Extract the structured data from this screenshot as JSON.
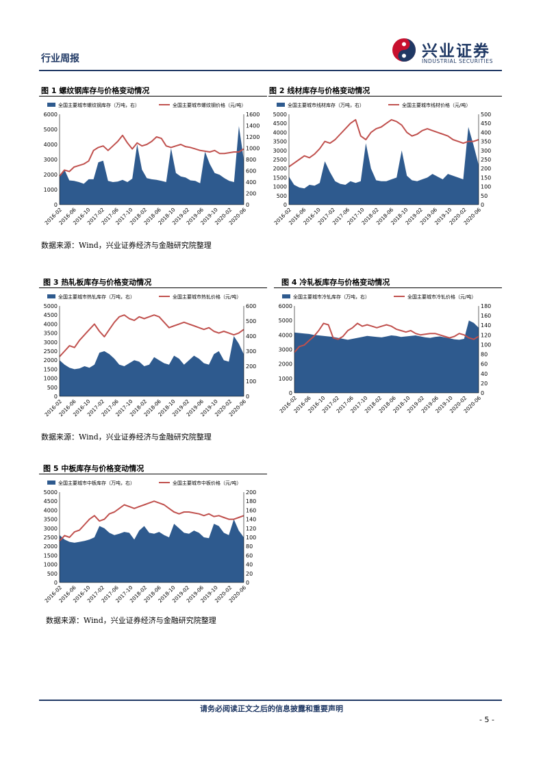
{
  "header": {
    "section_title": "行业周报",
    "logo_cn": "兴业证券",
    "logo_en": "INDUSTRIAL SECURITIES"
  },
  "source_note": "数据来源：Wind，兴业证券经济与金融研究院整理",
  "footer": {
    "disclaimer": "请务必阅读正文之后的信息披露和重要声明",
    "page_number": "- 5 -"
  },
  "colors": {
    "inventory": "#2e5a8e",
    "price": "#c0504d",
    "brand": "#1f3864"
  },
  "chart_data": [
    {
      "id": "fig1",
      "type": "area",
      "figure_title": "图 1 螺纹钢库存与价格变动情况",
      "legend": [
        "全国主要城市螺纹钢库存（万吨，右）",
        "全国主要城市螺纹钢价格（元/吨）"
      ],
      "x_ticks": [
        "2016-02",
        "2016-06",
        "2016-10",
        "2017-02",
        "2017-06",
        "2017-10",
        "2018-02",
        "2018-06",
        "2018-10",
        "2019-02",
        "2019-06",
        "2019-10",
        "2020-02",
        "2020-06"
      ],
      "left_ticks": [
        "0",
        "1000",
        "2000",
        "3000",
        "4000",
        "5000",
        "6000"
      ],
      "right_ticks": [
        "0",
        "200",
        "400",
        "600",
        "800",
        "1000",
        "1200",
        "1400",
        "1600"
      ],
      "left_max": 6000,
      "right_max": 1600,
      "series": [
        {
          "name": "全国主要城市螺纹钢库存（万吨，右）",
          "kind": "area",
          "axis": "right",
          "values": [
            500,
            620,
            430,
            420,
            400,
            370,
            450,
            450,
            750,
            780,
            420,
            400,
            410,
            440,
            400,
            460,
            1070,
            620,
            470,
            450,
            440,
            420,
            400,
            1000,
            560,
            500,
            480,
            430,
            420,
            380,
            940,
            720,
            560,
            530,
            470,
            420,
            400,
            1390,
            800
          ]
        },
        {
          "name": "全国主要城市螺纹钢价格（元/吨）",
          "kind": "line",
          "axis": "left",
          "values": [
            1900,
            2300,
            2200,
            2500,
            2600,
            2700,
            2900,
            3600,
            3800,
            3900,
            3600,
            3900,
            4200,
            4600,
            4100,
            3700,
            4100,
            3900,
            4000,
            4200,
            4500,
            4400,
            3900,
            3800,
            3900,
            4000,
            3850,
            3800,
            3700,
            3600,
            3550,
            3500,
            3600,
            3400,
            3400,
            3450,
            3500,
            3500,
            3700
          ]
        }
      ]
    },
    {
      "id": "fig2",
      "type": "area",
      "figure_title": "图 2 线材库存与价格变动情况",
      "legend": [
        "全国主要城市线材库存（万吨，右）",
        "全国主要城市线材价格（元/吨）"
      ],
      "x_ticks": [
        "2016-02",
        "2016-06",
        "2016-10",
        "2017-02",
        "2017-06",
        "2017-10",
        "2018-02",
        "2018-06",
        "2018-10",
        "2019-02",
        "2019-06",
        "2019-10",
        "2020-02",
        "2020-06"
      ],
      "left_ticks": [
        "0",
        "500",
        "1000",
        "1500",
        "2000",
        "2500",
        "3000",
        "3500",
        "4000",
        "4500",
        "5000"
      ],
      "right_ticks": [
        "0",
        "50",
        "100",
        "150",
        "200",
        "250",
        "300",
        "350",
        "400",
        "450",
        "500"
      ],
      "left_max": 5000,
      "right_max": 500,
      "series": [
        {
          "name": "全国主要城市线材库存（万吨，右）",
          "kind": "area",
          "axis": "right",
          "values": [
            155,
            110,
            95,
            90,
            110,
            105,
            120,
            240,
            180,
            130,
            115,
            110,
            130,
            120,
            130,
            340,
            200,
            135,
            130,
            130,
            140,
            150,
            300,
            160,
            135,
            130,
            140,
            150,
            170,
            155,
            140,
            170,
            160,
            150,
            140,
            430,
            330,
            220
          ]
        },
        {
          "name": "全国主要城市线材价格（元/吨）",
          "kind": "line",
          "axis": "left",
          "values": [
            2100,
            2300,
            2500,
            2700,
            2600,
            2800,
            3100,
            3500,
            3400,
            3600,
            3900,
            4200,
            4500,
            4700,
            3800,
            3600,
            4000,
            4200,
            4300,
            4500,
            4700,
            4600,
            4400,
            4000,
            3800,
            3900,
            4100,
            4200,
            4100,
            4000,
            3900,
            3800,
            3600,
            3500,
            3400,
            3500,
            3500,
            3600
          ]
        }
      ]
    },
    {
      "id": "fig3",
      "type": "area",
      "figure_title": "图 3 热轧板库存与价格变动情况",
      "legend": [
        "全国主要城市热轧库存（万吨，右）",
        "全国主要城市热轧价格（元/吨）"
      ],
      "x_ticks": [
        "2016-02",
        "2016-06",
        "2016-10",
        "2017-02",
        "2017-06",
        "2017-10",
        "2018-02",
        "2018-06",
        "2018-10",
        "2019-02",
        "2019-06",
        "2019-10",
        "2020-02",
        "2020-06"
      ],
      "left_ticks": [
        "0",
        "500",
        "1000",
        "1500",
        "2000",
        "2500",
        "3000",
        "3500",
        "4000",
        "4500",
        "5000"
      ],
      "right_ticks": [
        "0",
        "100",
        "200",
        "300",
        "400",
        "500",
        "600"
      ],
      "left_max": 5000,
      "right_max": 600,
      "series": [
        {
          "name": "全国主要城市热轧库存（万吨，右）",
          "kind": "area",
          "axis": "right",
          "values": [
            240,
            210,
            190,
            180,
            185,
            200,
            190,
            210,
            290,
            300,
            280,
            250,
            210,
            200,
            220,
            240,
            230,
            200,
            210,
            260,
            240,
            220,
            210,
            270,
            250,
            210,
            240,
            270,
            250,
            220,
            210,
            280,
            300,
            240,
            230,
            400,
            350,
            280
          ]
        },
        {
          "name": "全国主要城市热轧价格（元/吨）",
          "kind": "line",
          "axis": "left",
          "values": [
            2200,
            2500,
            2800,
            2700,
            3100,
            3400,
            3700,
            4000,
            3600,
            3300,
            3700,
            4100,
            4400,
            4500,
            4300,
            4200,
            4400,
            4300,
            4400,
            4500,
            4400,
            4100,
            3800,
            3900,
            4000,
            4100,
            4000,
            3900,
            3800,
            3700,
            3800,
            3600,
            3500,
            3600,
            3500,
            3400,
            3500,
            3700
          ]
        }
      ]
    },
    {
      "id": "fig4",
      "type": "area",
      "figure_title": "图 4 冷轧板库存与价格变动情况",
      "legend": [
        "全国主要城市冷轧库存（万吨，右）",
        "全国主要城市冷轧价格（元/吨）"
      ],
      "x_ticks": [
        "2016-02",
        "2016-06",
        "2016-10",
        "2017-02",
        "2017-06",
        "2017-10",
        "2018-02",
        "2018-06",
        "2018-10",
        "2019-02",
        "2019-06",
        "2019-10",
        "2020-02",
        "2020-06"
      ],
      "left_ticks": [
        "0",
        "1000",
        "2000",
        "3000",
        "4000",
        "5000",
        "6000"
      ],
      "right_ticks": [
        "0",
        "20",
        "40",
        "60",
        "80",
        "100",
        "120",
        "140",
        "160",
        "180"
      ],
      "left_max": 6000,
      "right_max": 180,
      "series": [
        {
          "name": "全国主要城市冷轧库存（万吨，右）",
          "kind": "area",
          "axis": "right",
          "values": [
            125,
            124,
            123,
            122,
            120,
            119,
            118,
            117,
            116,
            114,
            112,
            110,
            112,
            114,
            116,
            118,
            117,
            116,
            115,
            117,
            119,
            118,
            116,
            117,
            118,
            119,
            117,
            115,
            114,
            116,
            117,
            115,
            113,
            111,
            110,
            112,
            150,
            145,
            135
          ]
        },
        {
          "name": "全国主要城市冷轧价格（元/吨）",
          "kind": "line",
          "axis": "left",
          "values": [
            2800,
            3200,
            3300,
            3600,
            3900,
            4300,
            4800,
            4700,
            3800,
            3700,
            3900,
            4300,
            4500,
            4800,
            4600,
            4700,
            4600,
            4500,
            4600,
            4700,
            4600,
            4400,
            4300,
            4200,
            4300,
            4100,
            4000,
            4050,
            4100,
            4100,
            4000,
            3900,
            3800,
            3900,
            4100,
            4000,
            3800,
            3700,
            3900
          ]
        }
      ]
    },
    {
      "id": "fig5",
      "type": "area",
      "figure_title": "图 5 中板库存与价格变动情况",
      "legend": [
        "全国主要城市中板库存（万吨，右）",
        "全国主要城市中板价格（元/吨）"
      ],
      "x_ticks": [
        "2016-02",
        "2016-06",
        "2016-10",
        "2017-02",
        "2017-06",
        "2017-10",
        "2018-02",
        "2018-06",
        "2018-10",
        "2019-02",
        "2019-06",
        "2019-10",
        "2020-02",
        "2020-06"
      ],
      "left_ticks": [
        "0",
        "500",
        "1000",
        "1500",
        "2000",
        "2500",
        "3000",
        "3500",
        "4000",
        "4500",
        "5000"
      ],
      "right_ticks": [
        "0",
        "20",
        "40",
        "60",
        "80",
        "100",
        "120",
        "140",
        "160",
        "180",
        "200"
      ],
      "left_max": 5000,
      "right_max": 200,
      "series": [
        {
          "name": "全国主要城市中板库存（万吨，右）",
          "kind": "area",
          "axis": "right",
          "values": [
            105,
            95,
            90,
            88,
            90,
            92,
            95,
            100,
            125,
            120,
            110,
            105,
            108,
            112,
            110,
            95,
            115,
            125,
            110,
            108,
            112,
            105,
            100,
            130,
            120,
            110,
            108,
            115,
            110,
            100,
            98,
            130,
            125,
            110,
            105,
            140,
            115,
            100
          ]
        },
        {
          "name": "全国主要城市中板价格（元/吨）",
          "kind": "line",
          "axis": "left",
          "values": [
            2300,
            2600,
            2500,
            2800,
            2900,
            3200,
            3500,
            3700,
            3400,
            3500,
            3800,
            3900,
            4100,
            4300,
            4200,
            4100,
            4200,
            4300,
            4400,
            4500,
            4400,
            4300,
            4100,
            3900,
            3800,
            3900,
            3900,
            3850,
            3800,
            3700,
            3800,
            3650,
            3700,
            3600,
            3500,
            3500,
            3600,
            3700
          ]
        }
      ]
    }
  ]
}
